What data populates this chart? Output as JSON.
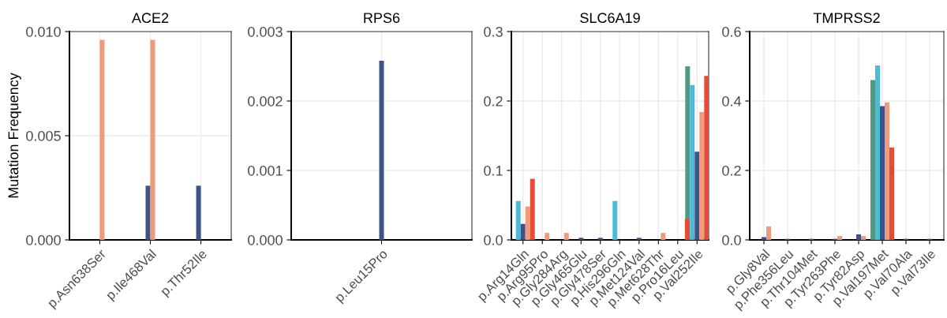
{
  "chart_data": [
    {
      "type": "bar",
      "title": "ACE2",
      "ylabel": "Mutation Frequency",
      "categories": [
        "p.Asn638Ser",
        "p.Ile468Val",
        "p.Thr52Ile"
      ],
      "ylim": [
        0,
        0.01
      ],
      "yticks": [
        {
          "value": 0,
          "label": "0.000"
        },
        {
          "value": 0.005,
          "label": "0.005"
        },
        {
          "value": 0.01,
          "label": "0.010"
        }
      ],
      "grid": true,
      "series": [
        {
          "color": "#3c5488",
          "values": [
            null,
            0.0026,
            0.0026
          ]
        },
        {
          "color": "#f0997c",
          "values": [
            0.0096,
            0.0096,
            null
          ]
        }
      ]
    },
    {
      "type": "bar",
      "title": "RPS6",
      "categories": [
        "p.Leu15Pro"
      ],
      "ylim": [
        0,
        0.003
      ],
      "yticks": [
        {
          "value": 0,
          "label": "0.000"
        },
        {
          "value": 0.001,
          "label": "0.001"
        },
        {
          "value": 0.002,
          "label": "0.002"
        },
        {
          "value": 0.003,
          "label": "0.003"
        }
      ],
      "grid": true,
      "series": [
        {
          "color": "#3c5488",
          "values": [
            0.00258
          ]
        }
      ]
    },
    {
      "type": "bar",
      "title": "SLC6A19",
      "categories": [
        "p.Arg14Gln",
        "p.Arg95Pro",
        "p.Gly284Arg",
        "p.Gly465Glu",
        "p.Gly478Ser",
        "p.His296Gln",
        "p.Met124Val",
        "p.Met628Thr",
        "p.Pro16Leu",
        "p.Val252Ile"
      ],
      "ylim": [
        0,
        0.3
      ],
      "yticks": [
        {
          "value": 0,
          "label": "0.0"
        },
        0.1,
        0.2,
        0.3
      ],
      "grid": true,
      "series": [
        {
          "color": "#4e9a82",
          "values": [
            null,
            null,
            null,
            null,
            null,
            null,
            null,
            null,
            null,
            0.25
          ]
        },
        {
          "color": "#4dbbd5",
          "values": [
            0.056,
            null,
            null,
            null,
            null,
            0.056,
            null,
            null,
            null,
            0.223
          ]
        },
        {
          "color": "#3c5488",
          "values": [
            0.023,
            null,
            null,
            0.003,
            0.003,
            null,
            0.003,
            null,
            null,
            0.127
          ]
        },
        {
          "color": "#f0997c",
          "values": [
            0.048,
            0.01,
            0.01,
            null,
            null,
            null,
            null,
            0.01,
            null,
            0.184
          ]
        },
        {
          "color": "#e64b35",
          "values": [
            0.088,
            null,
            null,
            null,
            null,
            null,
            null,
            null,
            0.03,
            0.236
          ]
        }
      ]
    },
    {
      "type": "bar",
      "title": "TMPRSS2",
      "categories": [
        "p.Gly8Val",
        "p.Phe356Leu",
        "p.Thr104Met",
        "p.Tyr263Phe",
        "p.Tyr82Asp",
        "p.Val197Met",
        "p.Val70Ala",
        "p.Val73Ile"
      ],
      "ylim": [
        0,
        0.6
      ],
      "yticks": [
        {
          "value": 0,
          "label": "0.0"
        },
        0.2,
        0.4,
        0.6
      ],
      "grid": true,
      "series": [
        {
          "color": "#4e9a82",
          "values": [
            null,
            null,
            null,
            null,
            null,
            0.46,
            null,
            null
          ]
        },
        {
          "color": "#4dbbd5",
          "values": [
            null,
            null,
            null,
            null,
            null,
            0.502,
            null,
            null
          ]
        },
        {
          "color": "#3c5488",
          "values": [
            0.008,
            0.003,
            0.003,
            0.003,
            0.016,
            0.385,
            0.003,
            0.003
          ]
        },
        {
          "color": "#f0997c",
          "values": [
            0.039,
            null,
            null,
            0.011,
            0.011,
            0.396,
            null,
            null
          ]
        },
        {
          "color": "#e64b35",
          "values": [
            null,
            null,
            null,
            null,
            null,
            0.266,
            null,
            null
          ]
        }
      ]
    }
  ]
}
